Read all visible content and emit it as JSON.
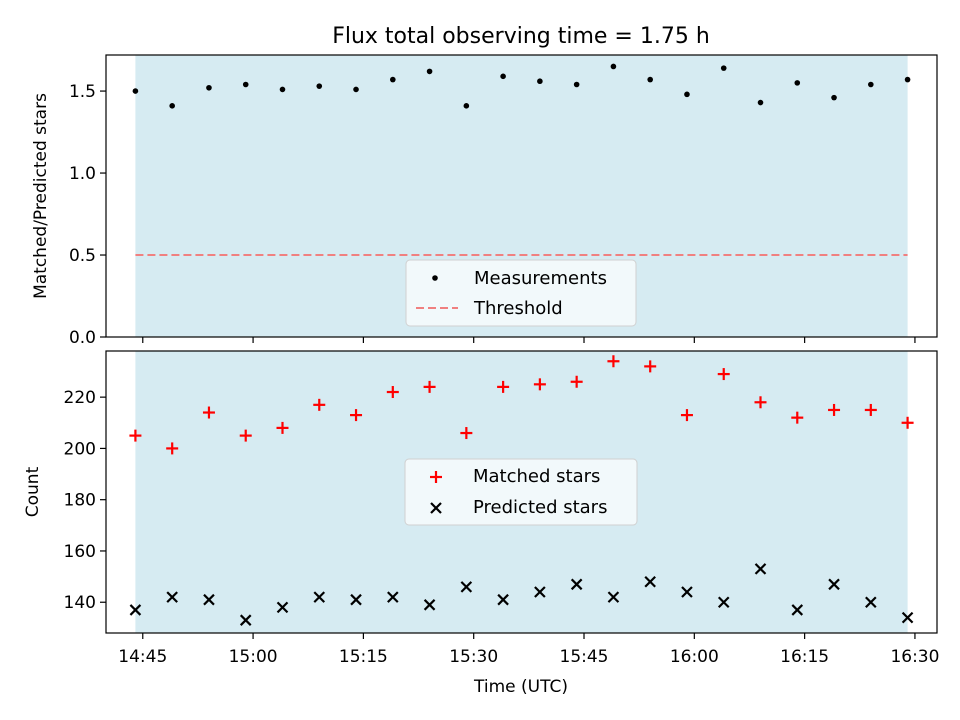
{
  "figure": {
    "title": "Flux total observing time = 1.75 h",
    "shade_color": "#add8e6",
    "shade_alpha": 0.5
  },
  "chart_data": [
    {
      "type": "scatter",
      "panel": "top",
      "title": "Flux total observing time = 1.75 h",
      "xlabel": "",
      "ylabel": "Matched/Predicted stars",
      "xlim": [
        "14:40",
        "16:33"
      ],
      "ylim": [
        0,
        1.72
      ],
      "yticks": [
        0.0,
        0.5,
        1.0,
        1.5
      ],
      "ytick_labels": [
        "0.0",
        "0.5",
        "1.0",
        "1.5"
      ],
      "legend_position": "lower center",
      "x": [
        "14:44",
        "14:49",
        "14:54",
        "14:59",
        "15:04",
        "15:09",
        "15:14",
        "15:19",
        "15:24",
        "15:29",
        "15:34",
        "15:39",
        "15:44",
        "15:49",
        "15:54",
        "15:59",
        "16:04",
        "16:09",
        "16:14",
        "16:19",
        "16:24",
        "16:29"
      ],
      "series": [
        {
          "name": "Measurements",
          "marker": "dot",
          "color": "#000000",
          "values": [
            1.5,
            1.41,
            1.52,
            1.54,
            1.51,
            1.53,
            1.51,
            1.57,
            1.62,
            1.41,
            1.59,
            1.56,
            1.54,
            1.65,
            1.57,
            1.48,
            1.64,
            1.43,
            1.55,
            1.46,
            1.54,
            1.57
          ]
        }
      ],
      "threshold": {
        "name": "Threshold",
        "value": 0.5,
        "color": "#f08080",
        "style": "dashed",
        "x_range": [
          "14:44",
          "16:29"
        ]
      }
    },
    {
      "type": "scatter",
      "panel": "bottom",
      "xlabel": "Time (UTC)",
      "ylabel": "Count",
      "xlim": [
        "14:40",
        "16:33"
      ],
      "ylim": [
        128,
        238
      ],
      "yticks": [
        140,
        160,
        180,
        200,
        220
      ],
      "ytick_labels": [
        "140",
        "160",
        "180",
        "200",
        "220"
      ],
      "xticks": [
        "14:45",
        "15:00",
        "15:15",
        "15:30",
        "15:45",
        "16:00",
        "16:15",
        "16:30"
      ],
      "legend_position": "center",
      "x": [
        "14:44",
        "14:49",
        "14:54",
        "14:59",
        "15:04",
        "15:09",
        "15:14",
        "15:19",
        "15:24",
        "15:29",
        "15:34",
        "15:39",
        "15:44",
        "15:49",
        "15:54",
        "15:59",
        "16:04",
        "16:09",
        "16:14",
        "16:19",
        "16:24",
        "16:29"
      ],
      "series": [
        {
          "name": "Matched stars",
          "marker": "plus",
          "color": "#ff0000",
          "values": [
            205,
            200,
            214,
            205,
            208,
            217,
            213,
            222,
            224,
            206,
            224,
            225,
            226,
            234,
            232,
            213,
            229,
            218,
            212,
            215,
            215,
            210
          ]
        },
        {
          "name": "Predicted stars",
          "marker": "x",
          "color": "#000000",
          "values": [
            137,
            142,
            141,
            133,
            138,
            142,
            141,
            142,
            139,
            146,
            141,
            144,
            147,
            142,
            148,
            144,
            140,
            153,
            137,
            147,
            140,
            134
          ]
        }
      ]
    }
  ]
}
